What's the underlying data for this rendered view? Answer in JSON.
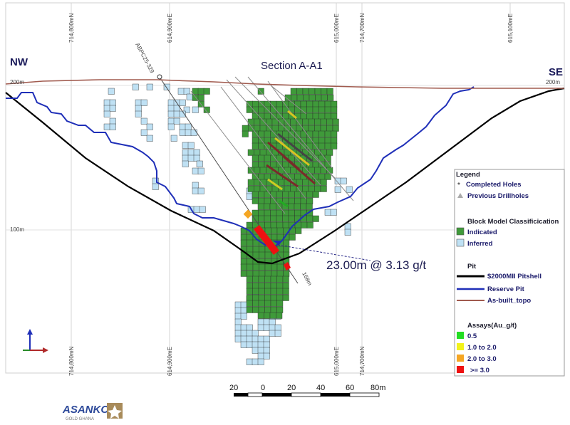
{
  "title": "Section A-A1",
  "orientation": {
    "left": "NW",
    "right": "SE"
  },
  "elevations": {
    "top": "200m",
    "mid": "100m",
    "top_right": "200m"
  },
  "grid_labels_top": [
    "714,800mN",
    "614,900mE",
    "615,000mE",
    "714,700mN",
    "615,100mE"
  ],
  "grid_labels_bottom": [
    "714,800mN",
    "614,900mE",
    "615,000mE",
    "714,700mN"
  ],
  "drillhole": {
    "name": "ABPC25-329",
    "depth": "168m"
  },
  "intercept": "23.00m @ 3.13 g/t",
  "legend": {
    "title": "Legend",
    "completed_holes": "Completed Holes",
    "previous_drillholes": "Previous Drillholes",
    "block_model_title": "Block Model Classificication",
    "indicated": "Indicated",
    "inferred": "Inferred",
    "pit_title": "Pit",
    "pitshell": "$2000MII Pitshell",
    "reserve_pit": "Reserve Pit",
    "topo": "As-built_topo",
    "assays_title": "Assays(Au_g/t)",
    "assay_ranges": [
      "0.5",
      "1.0 to 2.0",
      "2.0 to 3.0",
      ">= 3.0"
    ]
  },
  "scale_bar": {
    "ticks": [
      "20",
      "0",
      "20",
      "40",
      "60",
      "80m"
    ]
  },
  "logo": {
    "main": "ASANKO",
    "sub": "GOLD GHANA"
  },
  "colors": {
    "indicated": "#3f9a3a",
    "inferred": "#bfe1f4",
    "pitshell": "#000000",
    "reserve_pit": "#1f2fb8",
    "topo": "#a05a4e",
    "assay_05": "#22dd22",
    "assay_1_2": "#f2f21a",
    "assay_2_3": "#f5a623",
    "assay_3": "#ee1111"
  }
}
